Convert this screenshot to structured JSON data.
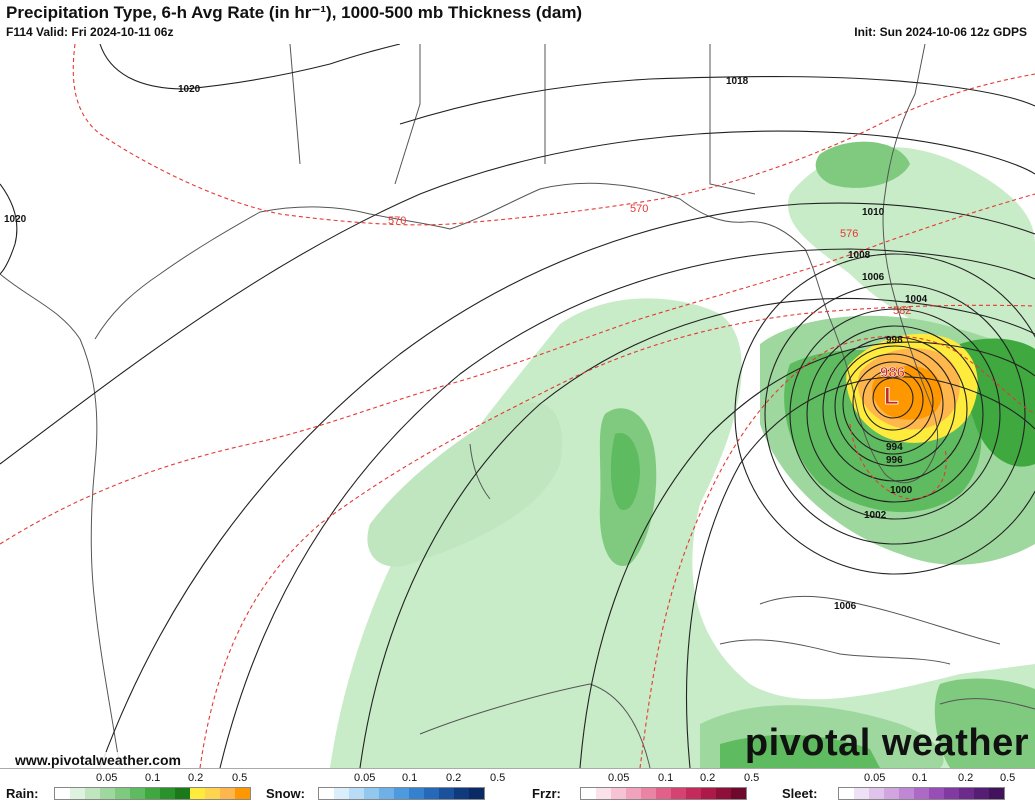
{
  "header": {
    "title": "Precipitation Type, 6-h Avg Rate (in hr⁻¹), 1000-500 mb Thickness (dam)",
    "valid": "F114 Valid: Fri 2024-10-11 06z",
    "init": "Init: Sun 2024-10-06 12z GDPS"
  },
  "map": {
    "low_pressure": {
      "value": "986",
      "symbol": "L"
    },
    "isobar_labels": [
      "1020",
      "1020",
      "1018",
      "1010",
      "1008",
      "1006",
      "1004",
      "998",
      "994",
      "996",
      "1000",
      "1002",
      "1006"
    ],
    "thickness_labels": [
      "570",
      "570",
      "576",
      "582"
    ]
  },
  "footer": {
    "url": "www.pivotalweather.com",
    "brand": "pivotal weather"
  },
  "legend": {
    "ticks": [
      "0.05",
      "0.1",
      "0.2",
      "0.5"
    ],
    "groups": [
      {
        "name": "Rain:",
        "colors": [
          "#ffffff",
          "#dff2df",
          "#bfe6bf",
          "#9fd89f",
          "#7fca7f",
          "#5fbb5f",
          "#3fa83f",
          "#2a922a",
          "#1a7a1a",
          "#ffeb3b",
          "#ffd54f",
          "#ffb74d",
          "#ff9800"
        ]
      },
      {
        "name": "Snow:",
        "colors": [
          "#ffffff",
          "#dbeefc",
          "#b8dcf7",
          "#92c7f0",
          "#6eb1e8",
          "#4d9ade",
          "#3482cf",
          "#2569b8",
          "#19519c",
          "#0f3a7d",
          "#0a2a66"
        ]
      },
      {
        "name": "Frzr:",
        "colors": [
          "#ffffff",
          "#fbe1ea",
          "#f7c3d4",
          "#f1a3bd",
          "#eb83a5",
          "#e2618b",
          "#d64373",
          "#c52a5d",
          "#ad1a4a",
          "#8e0f39",
          "#6e082c"
        ]
      },
      {
        "name": "Sleet:",
        "colors": [
          "#ffffff",
          "#efe1f5",
          "#e0c3eb",
          "#d0a5e0",
          "#bf87d4",
          "#ac69c6",
          "#984eb6",
          "#823aa3",
          "#6c2a8d",
          "#561d74",
          "#40135a"
        ]
      }
    ]
  }
}
